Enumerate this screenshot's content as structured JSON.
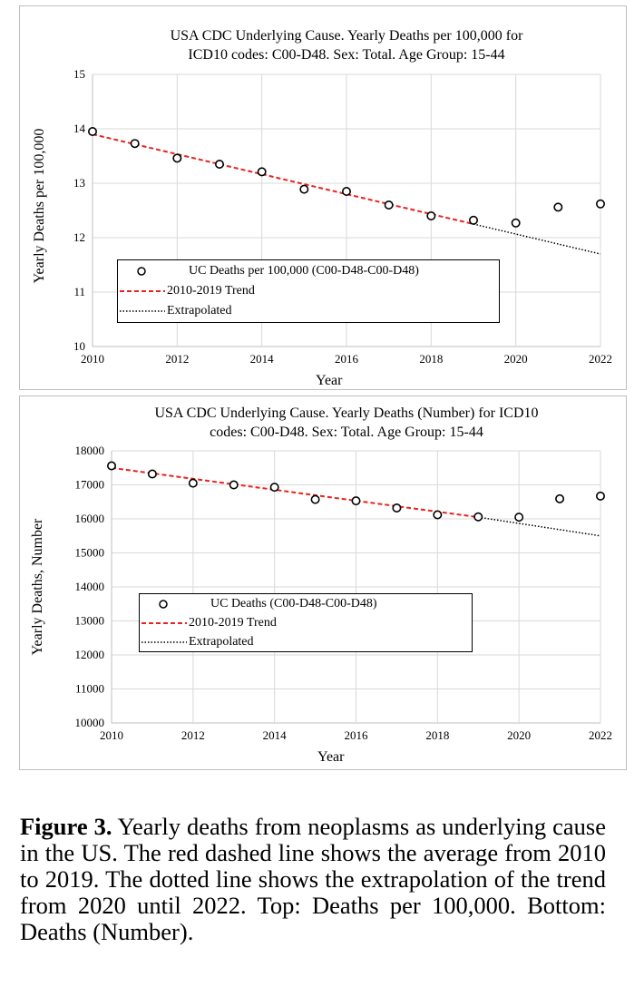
{
  "charts": [
    {
      "title_line1": "USA CDC Underlying Cause. Yearly Deaths per 100,000 for",
      "title_line2": "ICD10 codes: C00-D48. Sex: Total. Age Group: 15-44",
      "xlabel": "Year",
      "ylabel": "Yearly Deaths per 100,000",
      "legend": {
        "points": "UC Deaths per 100,000 (C00-D48-C00-D48)",
        "trend": "2010-2019 Trend",
        "extrapolated": "Extrapolated"
      }
    },
    {
      "title_line1": "USA CDC Underlying Cause. Yearly Deaths (Number) for ICD10",
      "title_line2": "codes: C00-D48. Sex: Total. Age Group: 15-44",
      "xlabel": "Year",
      "ylabel": "Yearly Deaths, Number",
      "legend": {
        "points": "UC Deaths (C00-D48-C00-D48)",
        "trend": "2010-2019 Trend",
        "extrapolated": "Extrapolated"
      }
    }
  ],
  "caption": {
    "label": "Figure 3.",
    "text": " Yearly deaths from neoplasms as underlying cause in the US. The red dashed line shows the average from 2010 to 2019. The dotted line shows the extrapolation of the trend from 2020 until 2022. Top: Deaths per 100,000. Bottom: Deaths (Number)."
  },
  "colors": {
    "trend": "#e8231f",
    "extrapolated": "#000000",
    "points": "#000000",
    "grid": "#d9d9d9"
  },
  "chart_data": [
    {
      "type": "scatter",
      "title": "USA CDC Underlying Cause. Yearly Deaths per 100,000 for ICD10 codes: C00-D48. Sex: Total. Age Group: 15-44",
      "xlabel": "Year",
      "ylabel": "Yearly Deaths per 100,000",
      "xlim": [
        2010,
        2022
      ],
      "ylim": [
        10,
        15
      ],
      "xticks": [
        "2010",
        "2012",
        "2014",
        "2016",
        "2018",
        "2020",
        "2022"
      ],
      "yticks": [
        "10",
        "11",
        "12",
        "13",
        "14",
        "15"
      ],
      "grid": true,
      "legend_position": "lower-left",
      "series": [
        {
          "name": "UC Deaths per 100,000 (C00-D48-C00-D48)",
          "style": "points",
          "x": [
            2010,
            2011,
            2012,
            2013,
            2014,
            2015,
            2016,
            2017,
            2018,
            2019,
            2020,
            2021,
            2022
          ],
          "y": [
            13.95,
            13.73,
            13.46,
            13.35,
            13.21,
            12.89,
            12.85,
            12.6,
            12.4,
            12.32,
            12.27,
            12.56,
            12.62
          ]
        },
        {
          "name": "2010-2019 Trend",
          "style": "dashed",
          "x": [
            2010,
            2019
          ],
          "y": [
            13.9,
            12.25
          ]
        },
        {
          "name": "Extrapolated",
          "style": "dotted",
          "x": [
            2019,
            2022
          ],
          "y": [
            12.25,
            11.7
          ]
        }
      ]
    },
    {
      "type": "scatter",
      "title": "USA CDC Underlying Cause. Yearly Deaths (Number) for ICD10 codes: C00-D48. Sex: Total. Age Group: 15-44",
      "xlabel": "Year",
      "ylabel": "Yearly Deaths, Number",
      "xlim": [
        2010,
        2022
      ],
      "ylim": [
        10000,
        18000
      ],
      "xticks": [
        "2010",
        "2012",
        "2014",
        "2016",
        "2018",
        "2020",
        "2022"
      ],
      "yticks": [
        "10000",
        "11000",
        "12000",
        "13000",
        "14000",
        "15000",
        "16000",
        "17000",
        "18000"
      ],
      "grid": true,
      "legend_position": "lower-left",
      "series": [
        {
          "name": "UC Deaths (C00-D48-C00-D48)",
          "style": "points",
          "x": [
            2010,
            2011,
            2012,
            2013,
            2014,
            2015,
            2016,
            2017,
            2018,
            2019,
            2020,
            2021,
            2022
          ],
          "y": [
            17560,
            17320,
            17050,
            17000,
            16930,
            16570,
            16530,
            16320,
            16120,
            16060,
            16050,
            16590,
            16670
          ]
        },
        {
          "name": "2010-2019 Trend",
          "style": "dashed",
          "x": [
            2010,
            2019
          ],
          "y": [
            17500,
            16050
          ]
        },
        {
          "name": "Extrapolated",
          "style": "dotted",
          "x": [
            2019,
            2022
          ],
          "y": [
            16050,
            15500
          ]
        }
      ]
    }
  ]
}
